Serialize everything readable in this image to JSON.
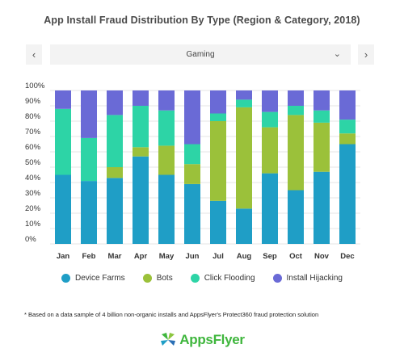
{
  "title": "App Install Fraud Distribution By Type (Region & Category, 2018)",
  "nav": {
    "prev_icon": "‹",
    "next_icon": "›"
  },
  "filter": {
    "selected": "Gaming",
    "chevron_icon": "⌄"
  },
  "footnote": "* Based on a data sample of 4 billion non-organic installs and AppsFlyer's Protect360 fraud protection solution",
  "logo": {
    "text": "AppsFlyer"
  },
  "colors": {
    "Device Farms": "#1f9ec6",
    "Bots": "#9bc13a",
    "Click Flooding": "#2dd4a6",
    "Install Hijacking": "#6a6ad6"
  },
  "chart_data": {
    "type": "bar",
    "stacked": true,
    "categories": [
      "Jan",
      "Feb",
      "Mar",
      "Apr",
      "May",
      "Jun",
      "Jul",
      "Aug",
      "Sep",
      "Oct",
      "Nov",
      "Dec"
    ],
    "y_ticks": [
      "0%",
      "10%",
      "20%",
      "30%",
      "40%",
      "50%",
      "60%",
      "70%",
      "80%",
      "90%",
      "100%"
    ],
    "ylim": [
      0,
      100
    ],
    "legend_position": "bottom",
    "series": [
      {
        "name": "Device Farms",
        "values": [
          45,
          41,
          43,
          57,
          45,
          39,
          28,
          23,
          46,
          35,
          47,
          65
        ]
      },
      {
        "name": "Bots",
        "values": [
          0,
          0,
          7,
          6,
          19,
          13,
          52,
          66,
          30,
          49,
          32,
          7
        ]
      },
      {
        "name": "Click Flooding",
        "values": [
          43,
          28,
          34,
          27,
          23,
          13,
          5,
          5,
          10,
          6,
          8,
          9
        ]
      },
      {
        "name": "Install Hijacking",
        "values": [
          12,
          31,
          16,
          10,
          13,
          35,
          15,
          6,
          14,
          10,
          13,
          19
        ]
      }
    ]
  }
}
